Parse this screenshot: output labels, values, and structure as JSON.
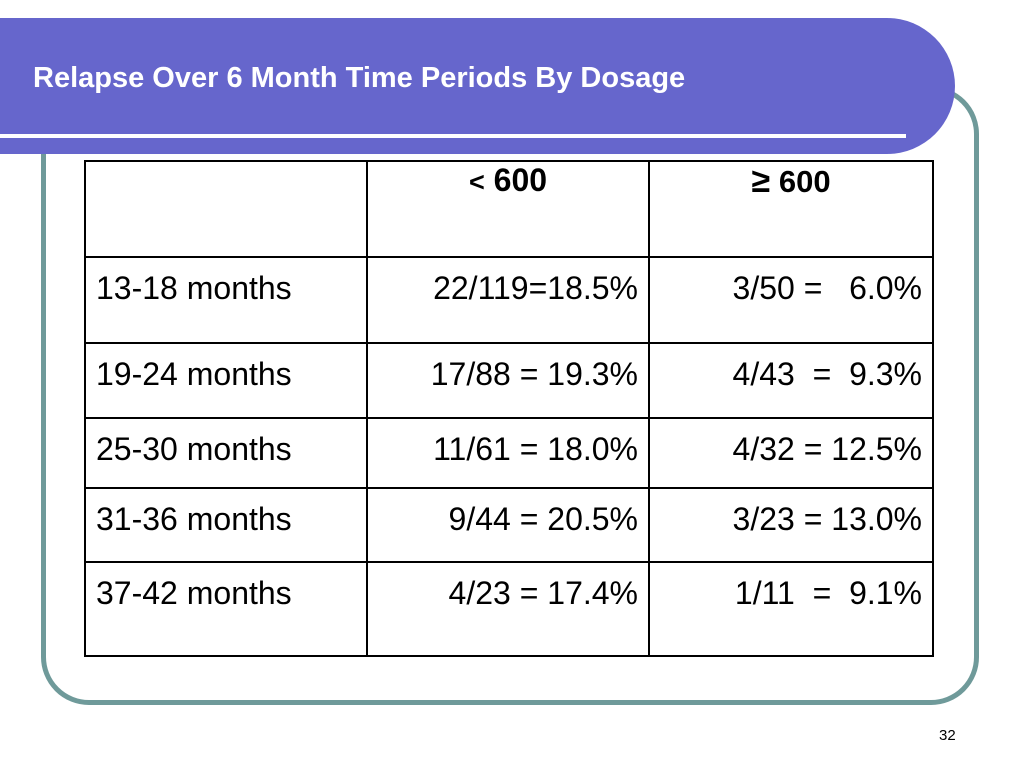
{
  "title": "Relapse Over 6 Month Time Periods By Dosage",
  "table": {
    "headers": [
      {
        "symbol": "",
        "number": ""
      },
      {
        "symbol": "<",
        "number": "600"
      },
      {
        "symbol": "≥",
        "number": "600"
      }
    ],
    "rows": [
      {
        "period": "13-18 months",
        "below_600": "22/119=18.5%",
        "at_or_above_600": "3/50 =   6.0%"
      },
      {
        "period": "19-24 months",
        "below_600": "17/88 = 19.3%",
        "at_or_above_600": "4/43  =  9.3%"
      },
      {
        "period": "25-30 months",
        "below_600": "11/61 = 18.0%",
        "at_or_above_600": "4/32 = 12.5%"
      },
      {
        "period": "31-36 months",
        "below_600": "9/44 = 20.5%",
        "at_or_above_600": "3/23 = 13.0%"
      },
      {
        "period": "37-42 months",
        "below_600": "4/23 = 17.4%",
        "at_or_above_600": "1/11  =  9.1%"
      }
    ]
  },
  "page_number": "32",
  "colors": {
    "title_bar": "#6666cc",
    "frame_border": "#6f9a9a",
    "title_text": "#ffffff"
  }
}
